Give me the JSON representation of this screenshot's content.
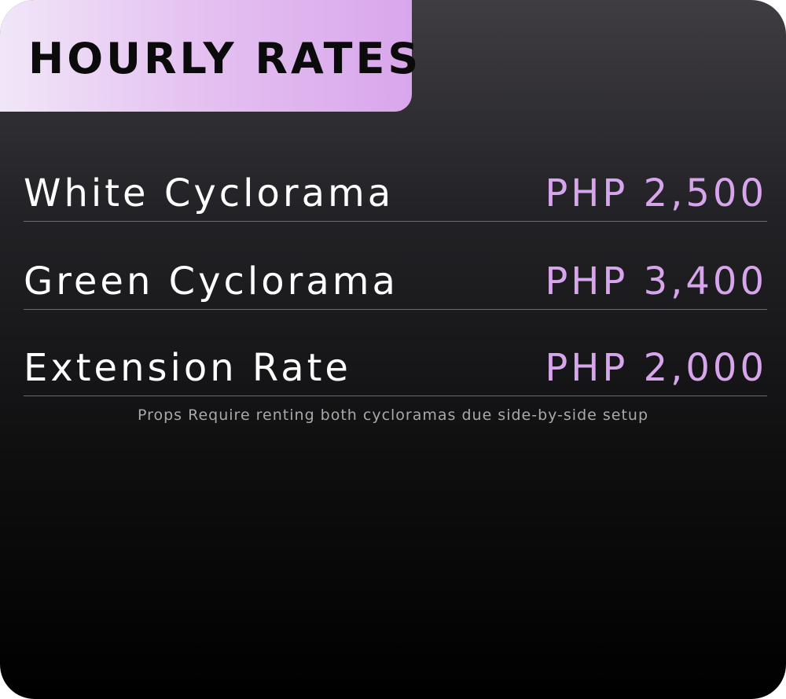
{
  "header": {
    "title": "HOURLY RATES"
  },
  "rates": [
    {
      "name": "White Cyclorama",
      "price": "PHP 2,500"
    },
    {
      "name": "Green Cyclorama",
      "price": "PHP 3,400"
    },
    {
      "name": "Extension Rate",
      "price": "PHP 2,000"
    }
  ],
  "note": "Props Require renting both cycloramas due side-by-side setup",
  "colors": {
    "accent": "#d7a5ec",
    "tab_gradient_start": "#f1e6f8",
    "tab_gradient_end": "#d9a6ec",
    "background_top": "#3f3d42",
    "background_bottom": "#000000"
  }
}
